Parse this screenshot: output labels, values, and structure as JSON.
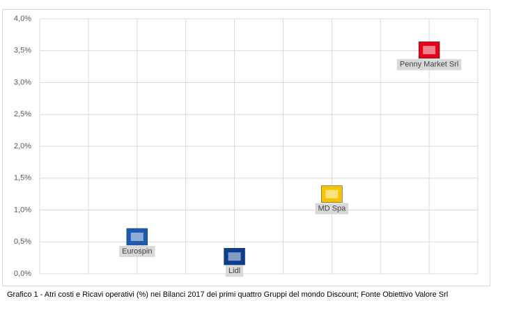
{
  "chart_data": {
    "type": "scatter",
    "caption": "Grafico 1 - Atri costi e Ricavi operativi (%) nei Bilanci 2017 dei primi quattro Gruppi del mondo Discount; Fonte Obiettivo Valore Srl",
    "labels": [
      "Eurospin",
      "Lidl",
      "MD Spa",
      "Penny Market Srl"
    ],
    "x": [
      2,
      4,
      6,
      8
    ],
    "values": [
      0.58,
      0.27,
      1.25,
      3.51
    ],
    "colors": [
      "#1d5bb0",
      "#0b3d91",
      "#f5c400",
      "#e2001a"
    ],
    "xlim": [
      0,
      9
    ],
    "xticks": [
      0,
      1,
      2,
      3,
      4,
      5,
      6,
      7,
      8,
      9
    ],
    "ylim": [
      0,
      4
    ],
    "yticks": [
      {
        "value": 0,
        "label": "0,0%"
      },
      {
        "value": 0.5,
        "label": "0,5%"
      },
      {
        "value": 1,
        "label": "1,0%"
      },
      {
        "value": 1.5,
        "label": "1,5%"
      },
      {
        "value": 2,
        "label": "2,0%"
      },
      {
        "value": 2.5,
        "label": "2,5%"
      },
      {
        "value": 3,
        "label": "3,0%"
      },
      {
        "value": 3.5,
        "label": "3,5%"
      },
      {
        "value": 4,
        "label": "4,0%"
      }
    ],
    "grid": true
  }
}
